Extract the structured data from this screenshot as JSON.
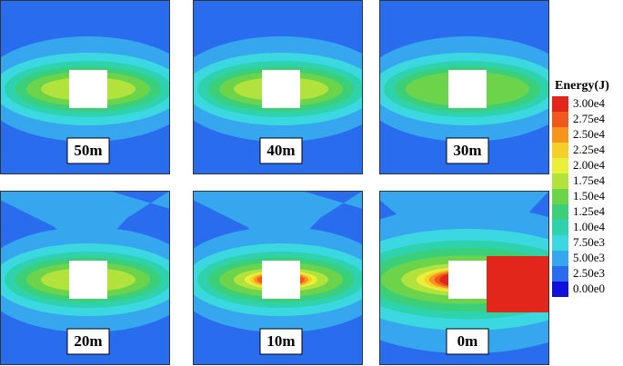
{
  "panels": [
    {
      "label": "50m"
    },
    {
      "label": "40m"
    },
    {
      "label": "30m"
    },
    {
      "label": "20m"
    },
    {
      "label": "10m"
    },
    {
      "label": "0m"
    }
  ],
  "colorbar": {
    "title": "Energy(J)",
    "levels": [
      {
        "label": "3.00e4",
        "color": "#e2261c"
      },
      {
        "label": "2.75e4",
        "color": "#f0581e"
      },
      {
        "label": "2.50e4",
        "color": "#f7931e"
      },
      {
        "label": "2.25e4",
        "color": "#f6cf2a"
      },
      {
        "label": "2.00e4",
        "color": "#e8f03a"
      },
      {
        "label": "1.75e4",
        "color": "#b2e23c"
      },
      {
        "label": "1.50e4",
        "color": "#6cd44a"
      },
      {
        "label": "1.25e4",
        "color": "#3ccf7a"
      },
      {
        "label": "1.00e4",
        "color": "#2ed2ac"
      },
      {
        "label": "7.50e3",
        "color": "#3cd8e2"
      },
      {
        "label": "5.00e3",
        "color": "#36a6ee"
      },
      {
        "label": "2.50e3",
        "color": "#2a6cee"
      },
      {
        "label": "0.00e0",
        "color": "#1010dc"
      }
    ]
  }
}
